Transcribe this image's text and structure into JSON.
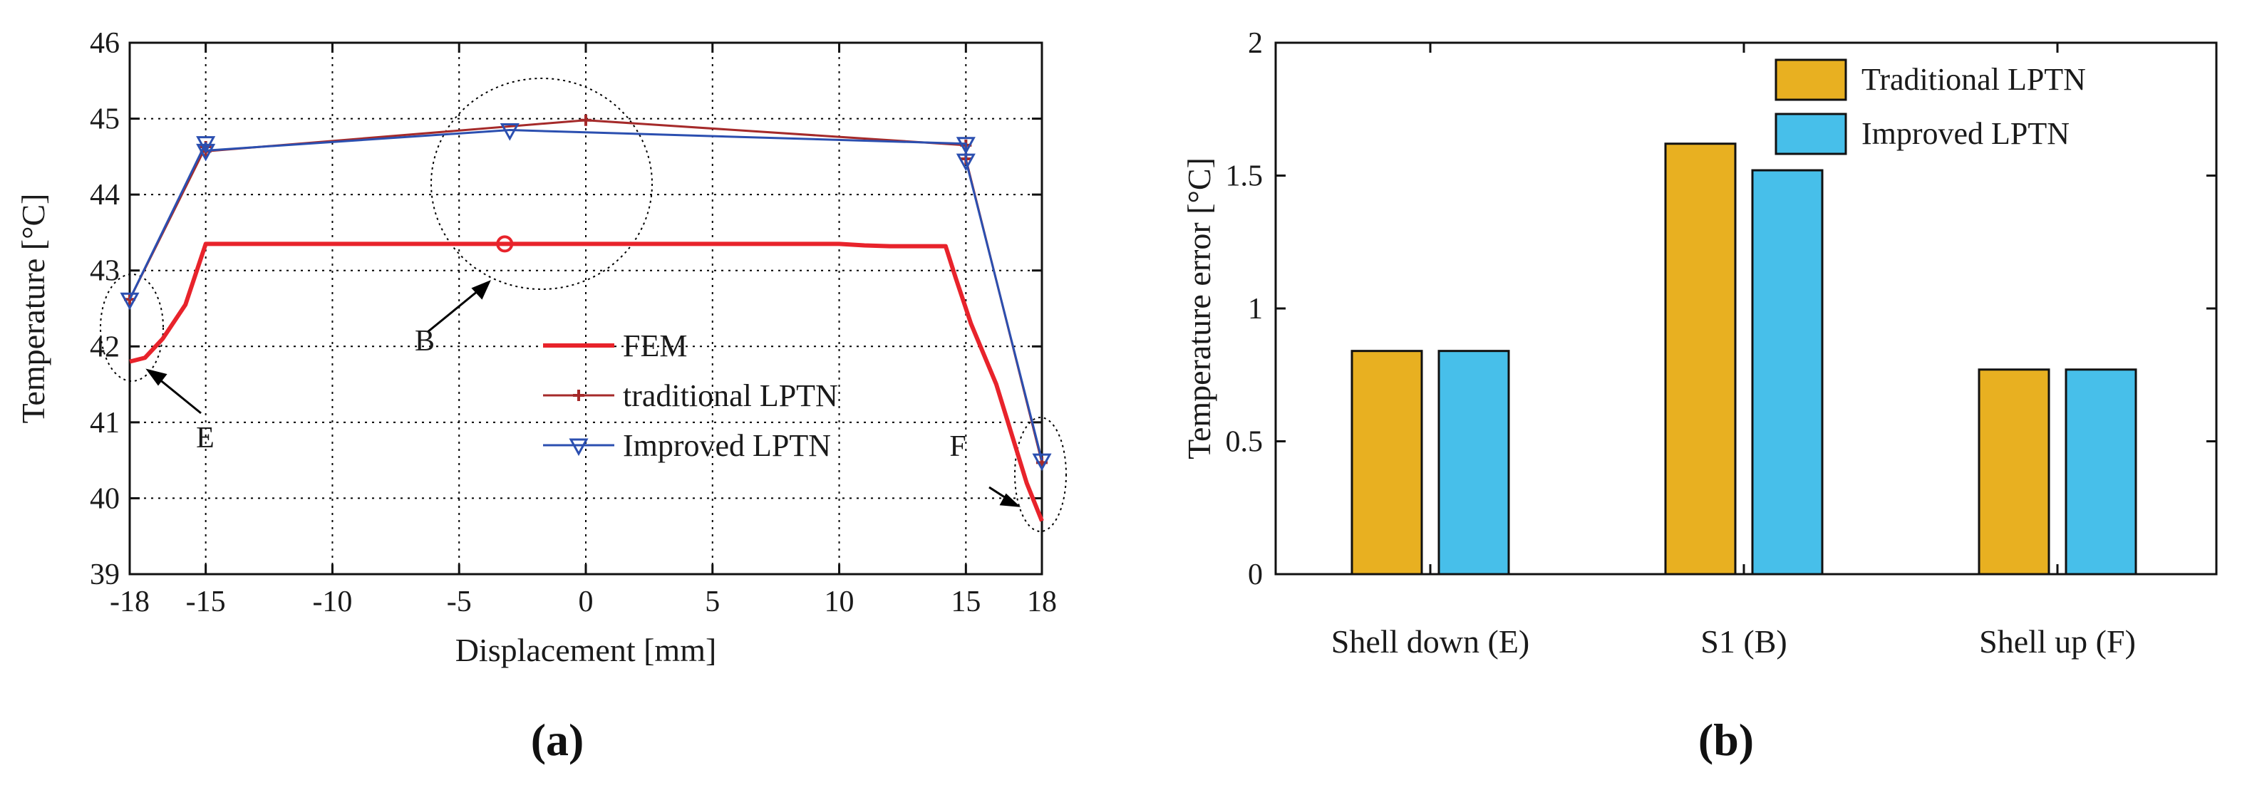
{
  "chart_data": [
    {
      "type": "line",
      "panel_label": "(a)",
      "xlabel": "Displacement [mm]",
      "ylabel": "Temperature [°C]",
      "xlim": [
        -18,
        18
      ],
      "ylim": [
        39,
        46
      ],
      "x_ticks": [
        -18,
        -15,
        -10,
        -5,
        0,
        5,
        10,
        15,
        18
      ],
      "x_tick_labels": [
        "-18",
        "-15",
        "-10",
        "-5",
        "0",
        "5",
        "10",
        "15",
        "18"
      ],
      "y_ticks": [
        39,
        40,
        41,
        42,
        43,
        44,
        45,
        46
      ],
      "y_tick_labels": [
        "39",
        "40",
        "41",
        "42",
        "43",
        "44",
        "45",
        "46"
      ],
      "grid": true,
      "legend_position": "center-right",
      "series": [
        {
          "name": "FEM",
          "color": "#e8232b",
          "marker": "circle",
          "marker_x": [
            -3.2
          ],
          "x": [
            -18,
            -17.4,
            -16.7,
            -15.8,
            -15,
            -10,
            -5,
            0,
            5,
            10,
            11,
            12,
            13,
            14.2,
            14.6,
            15.2,
            16.2,
            17.4,
            18
          ],
          "y": [
            41.8,
            41.85,
            42.1,
            42.55,
            43.35,
            43.35,
            43.35,
            43.35,
            43.35,
            43.35,
            43.33,
            43.32,
            43.32,
            43.32,
            42.9,
            42.3,
            41.5,
            40.2,
            39.7
          ]
        },
        {
          "name": "traditional LPTN",
          "color": "#a52a2a",
          "marker": "plus",
          "x": [
            -18,
            -15,
            -15,
            0,
            15,
            15,
            18
          ],
          "y": [
            42.62,
            44.63,
            44.57,
            44.98,
            44.65,
            44.47,
            40.47
          ]
        },
        {
          "name": "Improved LPTN",
          "color": "#2b4fb0",
          "marker": "triangle-down",
          "x": [
            -18,
            -15,
            -15,
            -3,
            15,
            15,
            18
          ],
          "y": [
            42.62,
            44.68,
            44.58,
            44.85,
            44.67,
            44.45,
            40.5
          ]
        }
      ],
      "annotations": [
        {
          "label": "E",
          "x": -18,
          "y": 42.3
        },
        {
          "label": "B",
          "x": -2,
          "y": 44.15
        },
        {
          "label": "F",
          "x": 18,
          "y": 40.5
        }
      ]
    },
    {
      "type": "bar",
      "panel_label": "(b)",
      "xlabel": "",
      "ylabel": "Temperature error [°C]",
      "ylim": [
        0,
        2
      ],
      "y_ticks": [
        0,
        0.5,
        1,
        1.5,
        2
      ],
      "y_tick_labels": [
        "0",
        "0.5",
        "1",
        "1.5",
        "2"
      ],
      "categories": [
        "Shell down (E)",
        "S1 (B)",
        "Shell up (F)"
      ],
      "legend_position": "top-right",
      "series": [
        {
          "name": "Traditional LPTN",
          "color": "#e8b021",
          "values": [
            0.84,
            1.62,
            0.77
          ]
        },
        {
          "name": "Improved LPTN",
          "color": "#47bfea",
          "values": [
            0.84,
            1.52,
            0.77
          ]
        }
      ]
    }
  ]
}
